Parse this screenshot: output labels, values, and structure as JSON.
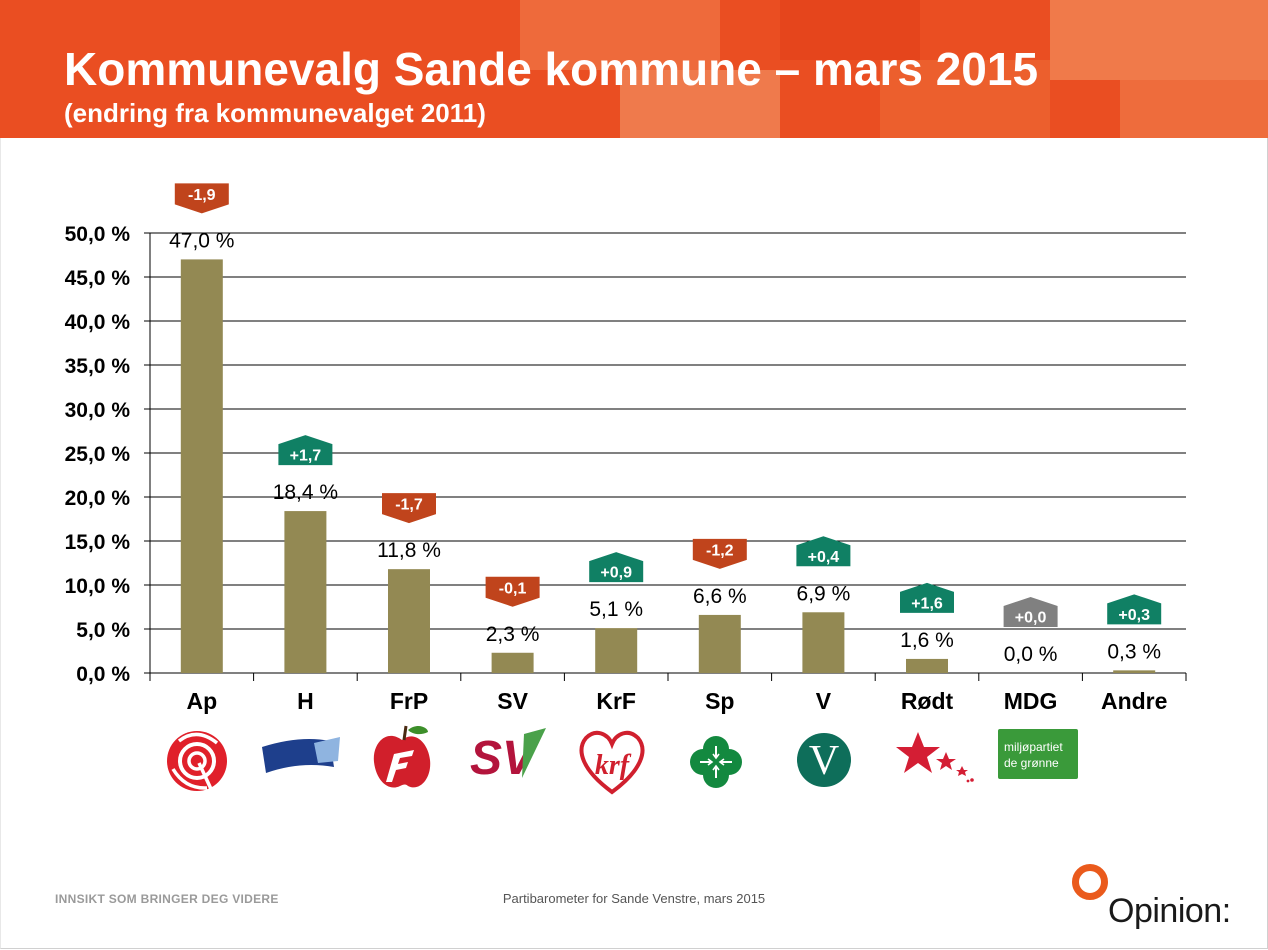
{
  "header": {
    "title": "Kommunevalg Sande kommune – mars 2015",
    "subtitle": "(endring fra kommunevalget 2011)"
  },
  "colors": {
    "header": "#ea4e22",
    "bar": "#938953",
    "negative": "#c0441c",
    "positive": "#108064",
    "neutral": "#808080"
  },
  "chart_data": {
    "type": "bar",
    "categories": [
      "Ap",
      "H",
      "FrP",
      "SV",
      "KrF",
      "Sp",
      "V",
      "Rødt",
      "MDG",
      "Andre"
    ],
    "values": [
      47.0,
      18.4,
      11.8,
      2.3,
      5.1,
      6.6,
      6.9,
      1.6,
      0.0,
      0.3
    ],
    "value_labels": [
      "47,0 %",
      "18,4 %",
      "11,8 %",
      "2,3 %",
      "5,1 %",
      "6,6 %",
      "6,9 %",
      "1,6 %",
      "0,0 %",
      "0,3 %"
    ],
    "change": [
      -1.9,
      1.7,
      -1.7,
      -0.1,
      0.9,
      -1.2,
      0.4,
      1.6,
      0.0,
      0.3
    ],
    "change_labels": [
      "-1,9",
      "+1,7",
      "-1,7",
      "-0,1",
      "+0,9",
      "-1,2",
      "+0,4",
      "+1,6",
      "+0,0",
      "+0,3"
    ],
    "ylim": [
      0,
      50
    ],
    "yticks": [
      0,
      5,
      10,
      15,
      20,
      25,
      30,
      35,
      40,
      45,
      50
    ],
    "ytick_labels": [
      "0,0 %",
      "5,0 %",
      "10,0 %",
      "15,0 %",
      "20,0 %",
      "25,0 %",
      "30,0 %",
      "35,0 %",
      "40,0 %",
      "45,0 %",
      "50,0 %"
    ],
    "grid": true,
    "legend": "none",
    "party_logos": [
      "ap-rose-icon",
      "h-flag-icon",
      "frp-apple-icon",
      "sv-logo-icon",
      "krf-logo-icon",
      "sp-clover-icon",
      "v-logo-icon",
      "rodt-star-icon",
      "mdg-logo-icon",
      ""
    ],
    "logo_text": {
      "sv": "SV",
      "krf": "krf",
      "v": "V",
      "mdg_line1": "miljøpartiet",
      "mdg_line2": "de grønne"
    }
  },
  "footer": {
    "tagline": "INNSIKT SOM BRINGER DEG VIDERE",
    "source": "Partibarometer for Sande Venstre, mars 2015",
    "brand": "Opinion:"
  }
}
